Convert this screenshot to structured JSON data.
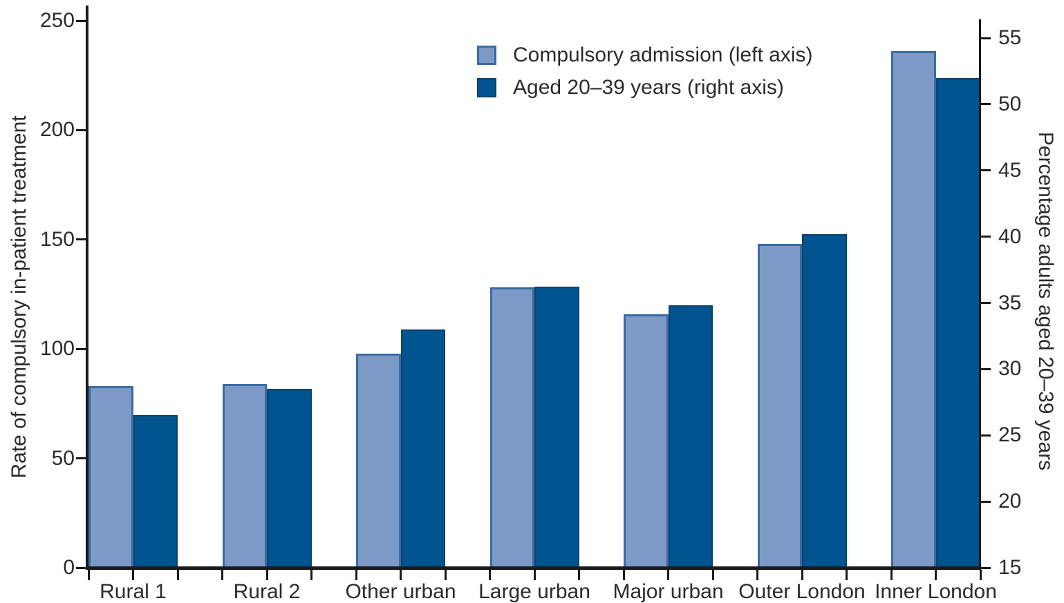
{
  "chart_data": {
    "type": "bar",
    "title": "",
    "categories": [
      "Rural 1",
      "Rural 2",
      "Other urban",
      "Large urban",
      "Major urban",
      "Outer London",
      "Inner London"
    ],
    "series": [
      {
        "name": "Compulsory admission (left axis)",
        "axis": "left",
        "color": "#7D9AC6",
        "border_color": "#3A6AA3",
        "values": [
          83,
          84,
          98,
          128,
          116,
          148,
          236
        ]
      },
      {
        "name": "Aged 20–39 years (right axis)",
        "axis": "right",
        "color": "#00548F",
        "border_color": "#11406B",
        "values": [
          26.5,
          28.5,
          33,
          36.2,
          34.8,
          40.2,
          52
        ]
      }
    ],
    "ylabel_left": "Rate of compulsory in-patient treatment",
    "ylabel_right": "Percentage adults aged 20–39 years",
    "xlabel": "",
    "left_axis": {
      "min": 0,
      "max": 250,
      "step": 50,
      "ticks": [
        0,
        50,
        100,
        150,
        200,
        250
      ]
    },
    "right_axis": {
      "min": 15,
      "max": 55,
      "step": 5,
      "ticks": [
        15,
        20,
        25,
        30,
        35,
        40,
        45,
        50,
        55
      ]
    },
    "axis_color": "#1a1a1a",
    "grid": false,
    "legend_position": "top-center-inside"
  }
}
